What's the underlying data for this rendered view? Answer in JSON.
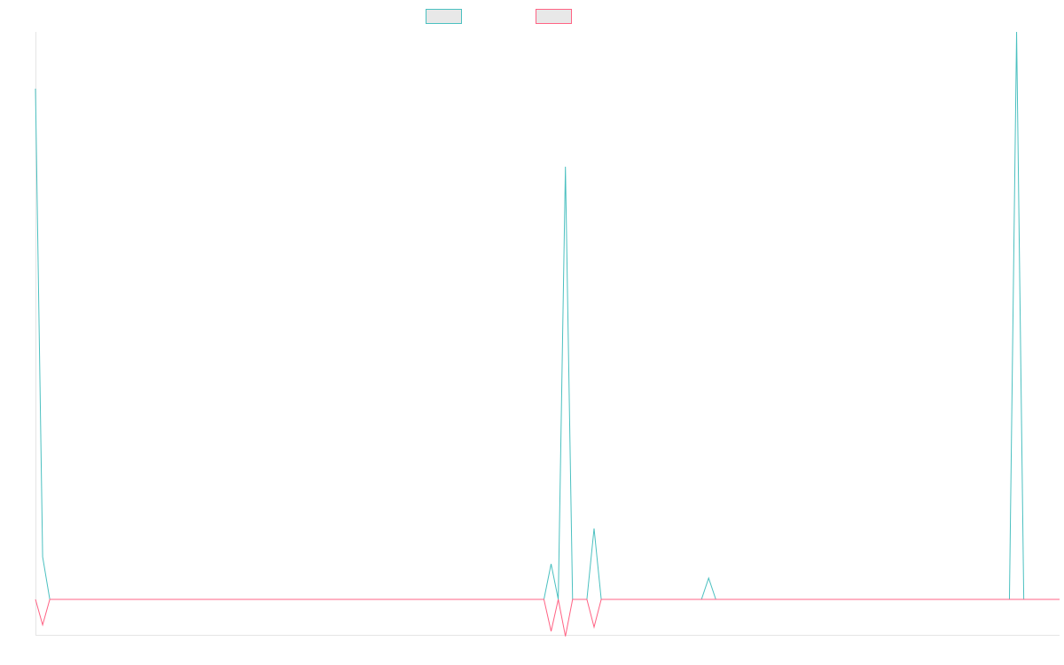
{
  "chart_data": {
    "type": "line",
    "title": "",
    "xlabel": "",
    "ylabel": "",
    "ylim": [
      -5,
      80
    ],
    "grid": false,
    "legend_position": "top-center",
    "legend_fill": "#e8e8e8",
    "point_count": 144,
    "series": [
      {
        "color": "#4bc0c0",
        "points": [
          [
            0,
            72
          ],
          [
            1,
            6
          ],
          [
            2,
            0
          ],
          [
            71,
            0
          ],
          [
            72,
            5
          ],
          [
            73,
            0
          ],
          [
            74,
            61
          ],
          [
            75,
            0
          ],
          [
            77,
            0
          ],
          [
            78,
            10
          ],
          [
            79,
            0
          ],
          [
            93,
            0
          ],
          [
            94,
            3
          ],
          [
            95,
            0
          ],
          [
            136,
            0
          ],
          [
            137,
            80
          ],
          [
            138,
            0
          ],
          [
            143,
            0
          ]
        ]
      },
      {
        "color": "#ff6384",
        "points": [
          [
            0,
            0
          ],
          [
            1,
            -3.6
          ],
          [
            2,
            0
          ],
          [
            71,
            0
          ],
          [
            72,
            -4.5
          ],
          [
            73,
            0
          ],
          [
            74,
            -5.2
          ],
          [
            75,
            0
          ],
          [
            77,
            0
          ],
          [
            78,
            -3.9
          ],
          [
            79,
            0
          ],
          [
            93,
            0
          ],
          [
            94,
            0
          ],
          [
            95,
            0
          ],
          [
            136,
            0
          ],
          [
            137,
            0
          ],
          [
            138,
            0
          ],
          [
            143,
            0
          ]
        ]
      }
    ]
  }
}
